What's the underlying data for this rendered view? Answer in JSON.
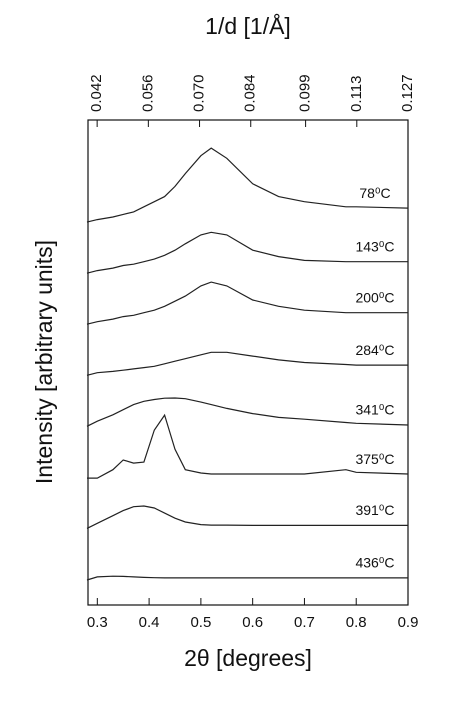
{
  "chart_data": {
    "type": "line",
    "title": "1/d [1/Å]",
    "x_label": "2θ [degrees]",
    "y_label": "Intensity [arbitrary units]",
    "xlim": [
      0.282,
      0.9
    ],
    "xticks": [
      0.3,
      0.4,
      0.5,
      0.6,
      0.7,
      0.8,
      0.9
    ],
    "x2lim": [
      0.0395,
      0.127
    ],
    "x2ticks": [
      0.042,
      0.056,
      {
        "value": 0.07,
        "label": "0.070"
      },
      0.084,
      0.099,
      0.113,
      0.127
    ],
    "ylim": [
      0,
      19
    ],
    "x": [
      0.28,
      0.3,
      0.33,
      0.35,
      0.37,
      0.39,
      0.41,
      0.43,
      0.45,
      0.47,
      0.5,
      0.52,
      0.55,
      0.6,
      0.65,
      0.7,
      0.78,
      0.8,
      0.9
    ],
    "series": [
      {
        "name": "78⁰C",
        "color": "#222222",
        "values": [
          15.0,
          15.1,
          15.2,
          15.3,
          15.4,
          15.6,
          15.8,
          16.0,
          16.4,
          16.9,
          17.6,
          17.9,
          17.5,
          16.5,
          16.0,
          15.8,
          15.6,
          15.6,
          15.55
        ]
      },
      {
        "name": "143⁰C",
        "color": "#222222",
        "values": [
          13.0,
          13.1,
          13.2,
          13.3,
          13.35,
          13.45,
          13.55,
          13.7,
          13.9,
          14.15,
          14.5,
          14.6,
          14.5,
          13.9,
          13.65,
          13.5,
          13.45,
          13.45,
          13.45
        ]
      },
      {
        "name": "200⁰C",
        "color": "#222222",
        "values": [
          11.0,
          11.1,
          11.2,
          11.3,
          11.35,
          11.45,
          11.55,
          11.7,
          11.9,
          12.1,
          12.5,
          12.65,
          12.5,
          11.95,
          11.7,
          11.55,
          11.45,
          11.45,
          11.45
        ]
      },
      {
        "name": "284⁰C",
        "color": "#222222",
        "values": [
          9.0,
          9.1,
          9.15,
          9.2,
          9.25,
          9.3,
          9.35,
          9.45,
          9.55,
          9.65,
          9.8,
          9.9,
          9.9,
          9.75,
          9.6,
          9.5,
          9.42,
          9.4,
          9.4
        ]
      },
      {
        "name": "341⁰C",
        "color": "#222222",
        "values": [
          7.0,
          7.2,
          7.45,
          7.65,
          7.85,
          7.98,
          8.05,
          8.1,
          8.11,
          8.08,
          7.95,
          7.85,
          7.7,
          7.5,
          7.35,
          7.28,
          7.15,
          7.12,
          7.05
        ]
      },
      {
        "name": "375⁰C",
        "color": "#222222",
        "values": [
          4.97,
          4.97,
          5.3,
          5.68,
          5.56,
          5.6,
          6.85,
          7.44,
          6.1,
          5.3,
          5.17,
          5.13,
          5.13,
          5.13,
          5.13,
          5.13,
          5.3,
          5.2,
          5.13
        ]
      },
      {
        "name": "391⁰C",
        "color": "#222222",
        "values": [
          3.0,
          3.2,
          3.5,
          3.7,
          3.85,
          3.88,
          3.8,
          3.6,
          3.4,
          3.25,
          3.15,
          3.13,
          3.13,
          3.12,
          3.12,
          3.12,
          3.12,
          3.12,
          3.12
        ]
      },
      {
        "name": "436⁰C",
        "color": "#222222",
        "values": [
          0.98,
          1.1,
          1.13,
          1.12,
          1.1,
          1.08,
          1.07,
          1.06,
          1.06,
          1.06,
          1.06,
          1.06,
          1.06,
          1.06,
          1.06,
          1.06,
          1.06,
          1.06,
          1.06
        ]
      }
    ]
  }
}
